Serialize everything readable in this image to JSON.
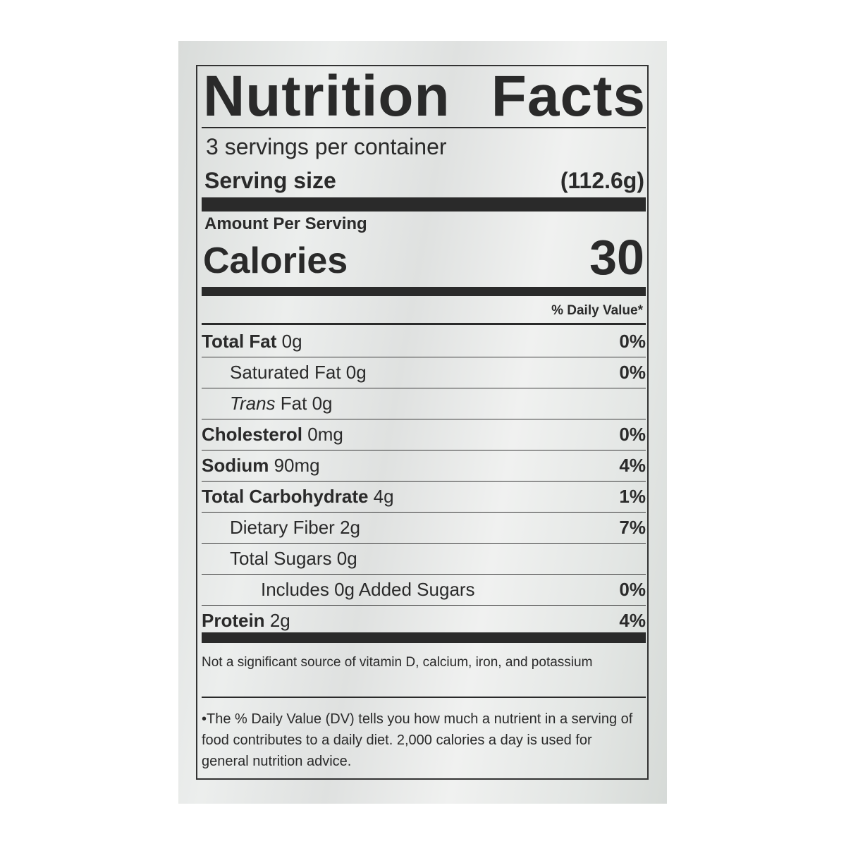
{
  "label": {
    "title_word1": "Nutrition",
    "title_word2": "Facts",
    "servings_per_container": "3 servings per container",
    "serving_size_label": "Serving size",
    "serving_size_value": "(112.6g)",
    "amount_per_serving": "Amount Per Serving",
    "calories_label": "Calories",
    "calories_value": "30",
    "daily_value_header": "% Daily Value*",
    "rows": [
      {
        "name": "Total Fat",
        "amount": "0g",
        "dv": "0%"
      },
      {
        "name": "Saturated Fat",
        "amount": "0g",
        "dv": "0%"
      },
      {
        "name": "Trans",
        "name2": "Fat",
        "amount": "0g",
        "dv": ""
      },
      {
        "name": "Cholesterol",
        "amount": "0mg",
        "dv": "0%"
      },
      {
        "name": "Sodium",
        "amount": "90mg",
        "dv": "4%"
      },
      {
        "name": "Total Carbohydrate",
        "amount": "4g",
        "dv": "1%"
      },
      {
        "name": "Dietary Fiber",
        "amount": "2g",
        "dv": "7%"
      },
      {
        "name": "Total Sugars",
        "amount": "0g",
        "dv": ""
      },
      {
        "name": "Includes 0g Added Sugars",
        "amount": "",
        "dv": "0%"
      },
      {
        "name": "Protein",
        "amount": "2g",
        "dv": "4%"
      }
    ],
    "footnote_vitamins": "Not a significant source of vitamin D, calcium, iron, and potassium",
    "footnote_dv": "•The % Daily Value (DV) tells you how much a nutrient in a serving of food contributes to a daily diet. 2,000 calories a day is used for general nutrition advice."
  }
}
